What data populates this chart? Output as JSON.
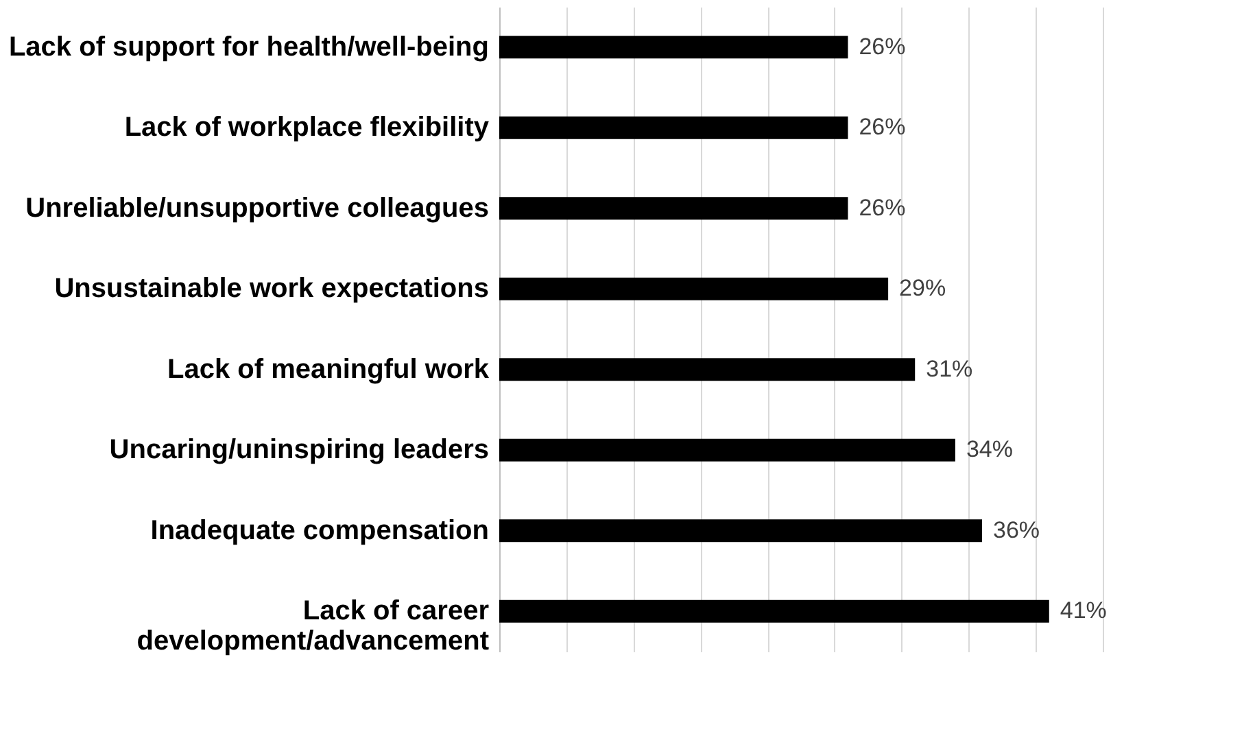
{
  "chart_data": {
    "type": "bar",
    "orientation": "horizontal",
    "categories": [
      "Lack of support for health/well-being",
      "Lack of workplace flexibility",
      "Unreliable/unsupportive colleagues",
      "Unsustainable work expectations",
      "Lack of meaningful work",
      "Uncaring/uninspiring leaders",
      "Inadequate compensation",
      "Lack of career\ndevelopment/advancement"
    ],
    "values": [
      26,
      26,
      26,
      29,
      31,
      34,
      36,
      41
    ],
    "value_labels": [
      "26%",
      "26%",
      "26%",
      "29%",
      "31%",
      "34%",
      "36%",
      "41%"
    ],
    "color": "#000000",
    "xlim": [
      0,
      45
    ],
    "xticks": [
      {
        "value": 0,
        "label": null
      },
      {
        "value": 5,
        "label": null
      },
      {
        "value": 10,
        "label": null
      },
      {
        "value": 15,
        "label": null
      },
      {
        "value": 20,
        "label": null
      },
      {
        "value": 25,
        "label": null
      },
      {
        "value": 30,
        "label": null
      },
      {
        "value": 35,
        "label": null
      },
      {
        "value": 40,
        "label": null
      },
      {
        "value": 45,
        "label": null
      }
    ],
    "grid": "x",
    "tick_labels": "y"
  }
}
